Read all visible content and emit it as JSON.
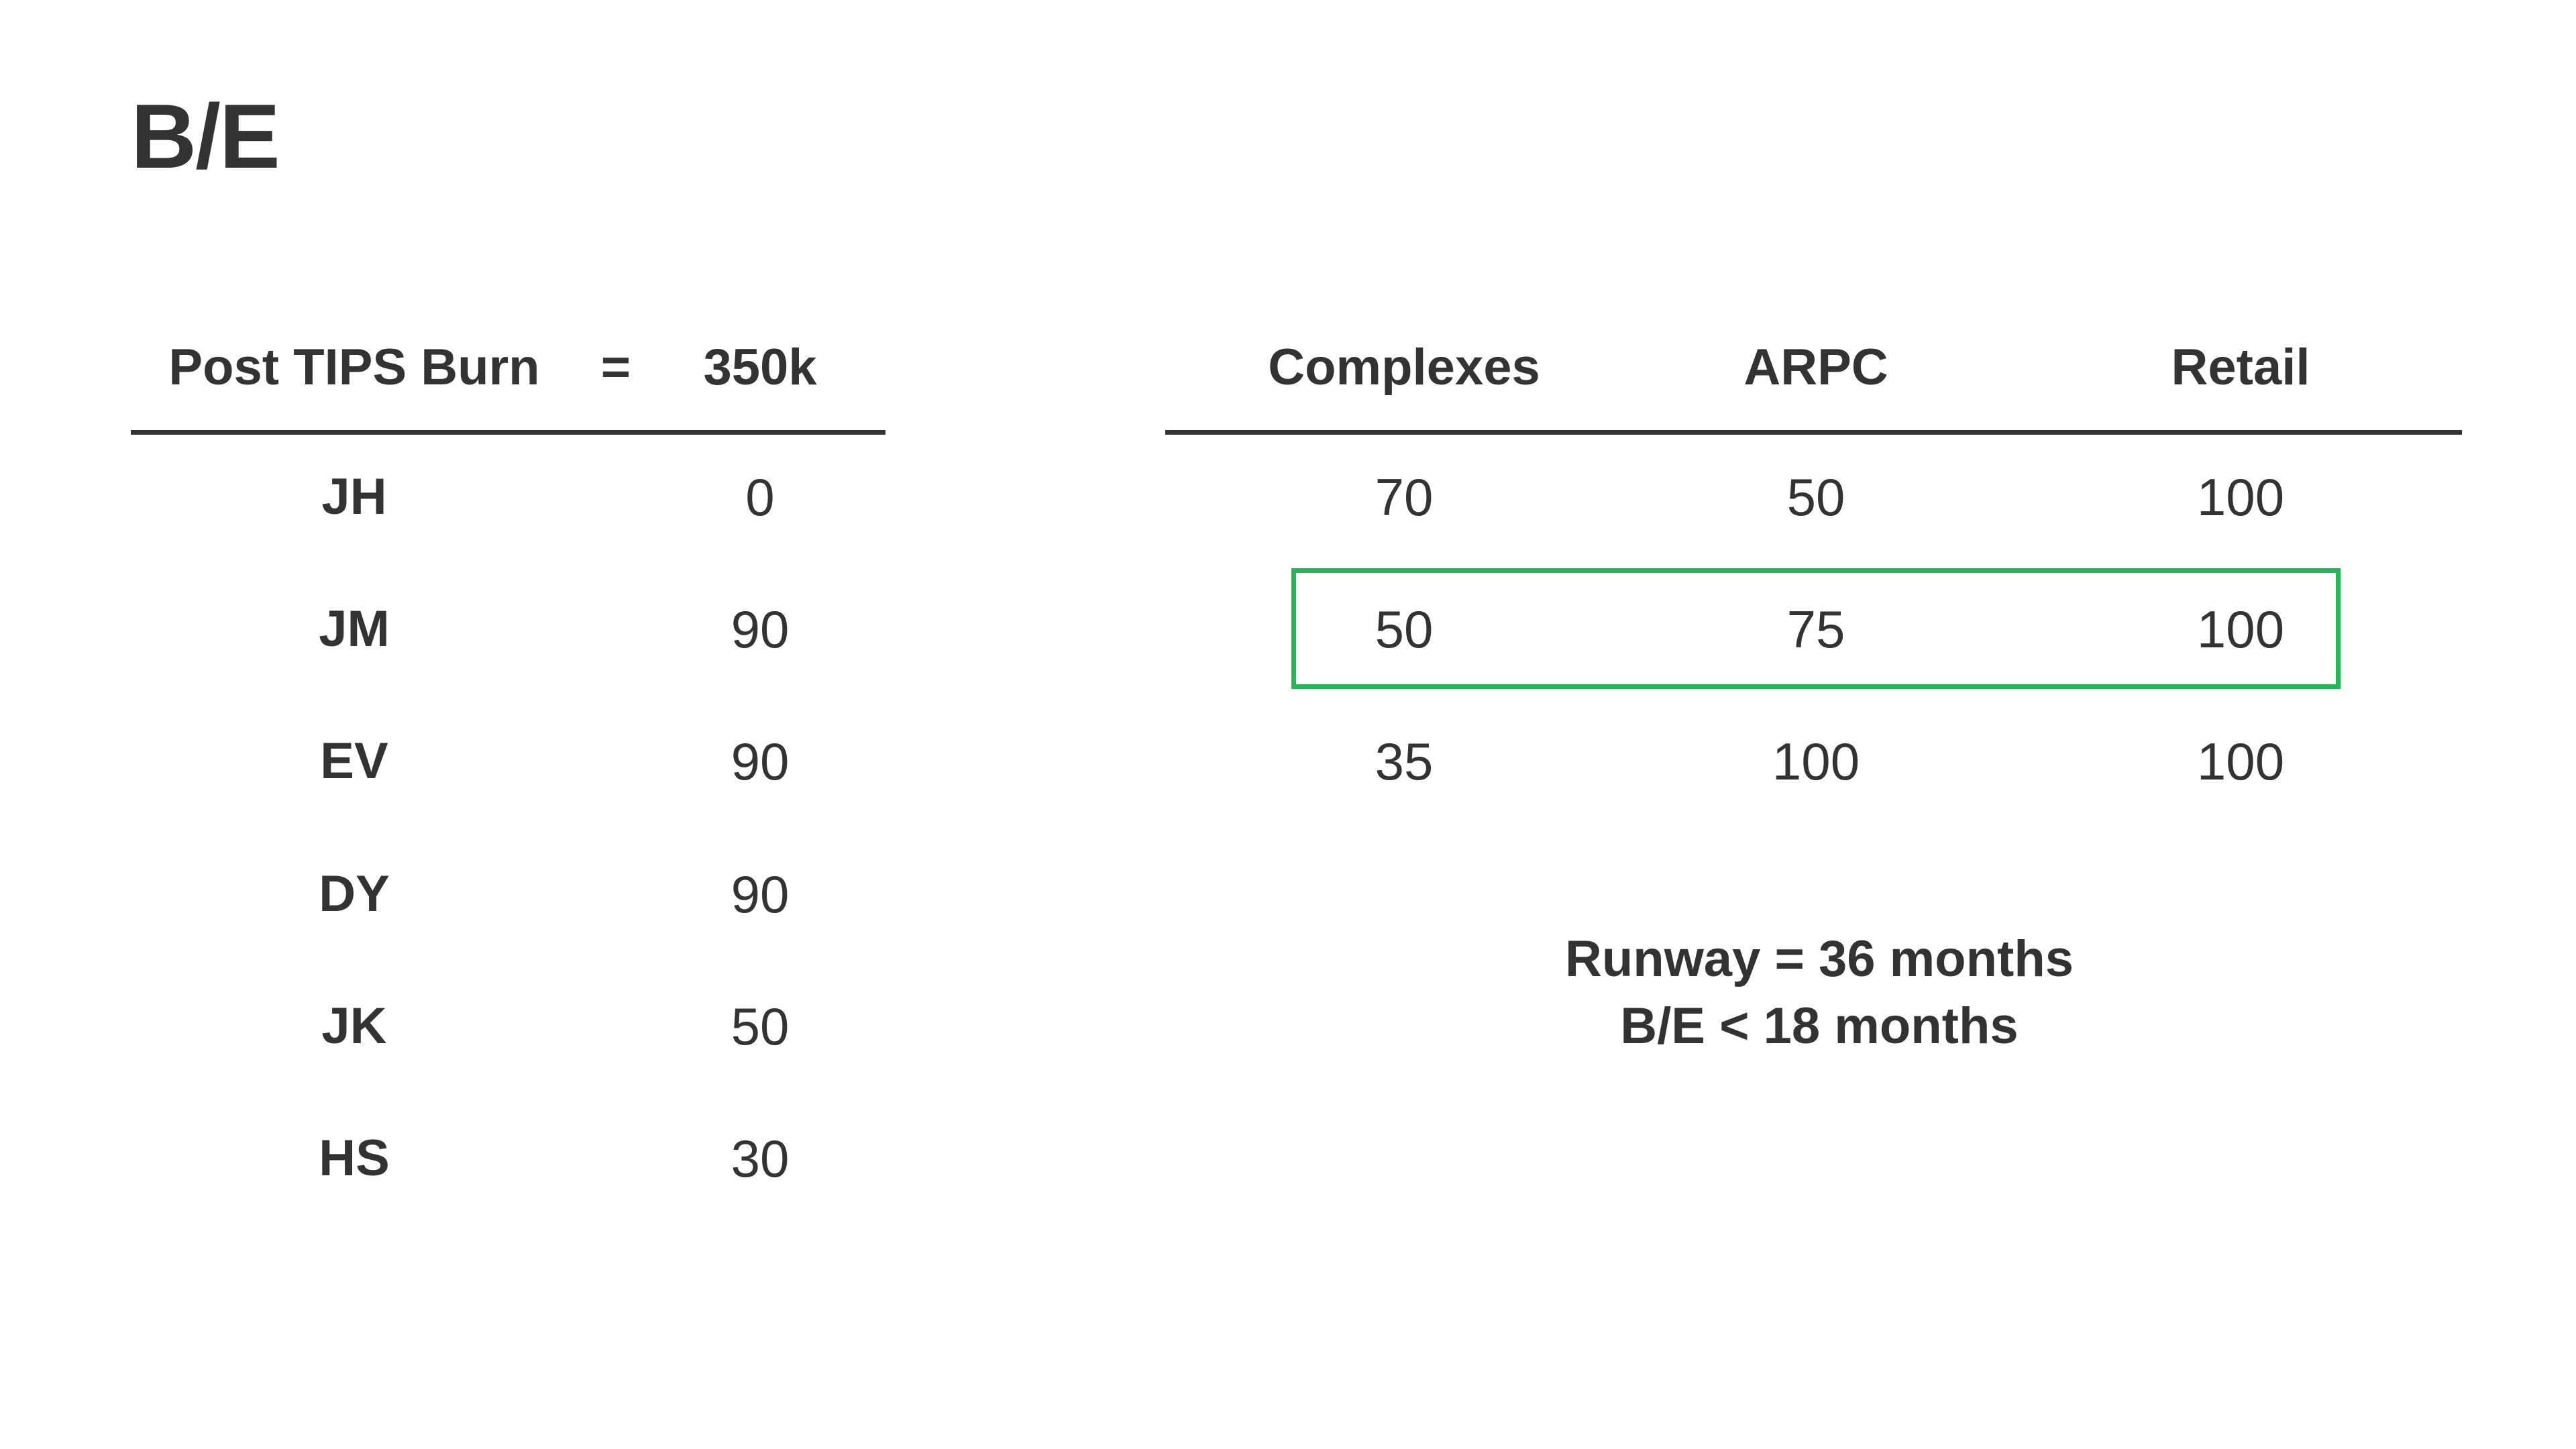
{
  "title": "B/E",
  "left_table": {
    "header": {
      "label": "Post TIPS Burn",
      "operator": "=",
      "value": "350k"
    },
    "rows": [
      {
        "label": "JH",
        "value": "0"
      },
      {
        "label": "JM",
        "value": "90"
      },
      {
        "label": "EV",
        "value": "90"
      },
      {
        "label": "DY",
        "value": "90"
      },
      {
        "label": "JK",
        "value": "50"
      },
      {
        "label": "HS",
        "value": "30"
      }
    ]
  },
  "right_table": {
    "columns": [
      "Complexes",
      "ARPC",
      "Retail"
    ],
    "rows": [
      [
        "70",
        "50",
        "100"
      ],
      [
        "50",
        "75",
        "100"
      ],
      [
        "35",
        "100",
        "100"
      ]
    ],
    "highlighted_row_index": 1,
    "highlight_color": "#22b857"
  },
  "notes": {
    "line1": "Runway = 36 months",
    "line2": "B/E < 18 months"
  },
  "colors": {
    "text": "#333333",
    "background": "#ffffff"
  }
}
